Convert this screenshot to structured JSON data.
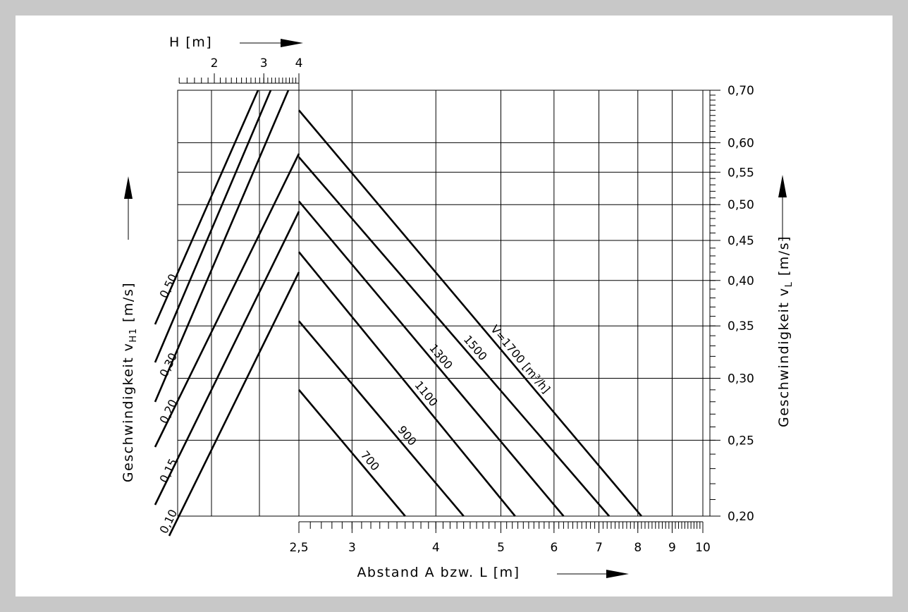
{
  "chart_data": {
    "type": "line",
    "title": "",
    "x_bottom": {
      "label": "Abstand A bzw. L [m]",
      "scale": "log",
      "range": [
        2.5,
        10
      ],
      "tick_labels": [
        "2,5",
        "3",
        "4",
        "5",
        "6",
        "7",
        "8",
        "9",
        "10"
      ],
      "tick_values": [
        2.5,
        3,
        4,
        5,
        6,
        7,
        8,
        9,
        10
      ]
    },
    "x_top": {
      "label": "H [m]",
      "scale": "log",
      "tick_labels": [
        "2",
        "3",
        "4"
      ],
      "tick_values": [
        2,
        3,
        4
      ]
    },
    "y_right": {
      "label": "Geschwindigkeit v_L [m/s]",
      "scale": "log",
      "range": [
        0.2,
        0.7
      ],
      "tick_labels": [
        "0,70",
        "0,60",
        "0,55",
        "0,50",
        "0,45",
        "0,40",
        "0,35",
        "0,30",
        "0,25",
        "0,20"
      ],
      "tick_values": [
        0.7,
        0.6,
        0.55,
        0.5,
        0.45,
        0.4,
        0.35,
        0.3,
        0.25,
        0.2
      ]
    },
    "y_left": {
      "label": "Geschwindigkeit v_H1 [m/s]",
      "curve_labels": [
        "0,10",
        "0,15",
        "0,20",
        "0,30",
        "0,50"
      ]
    },
    "flow_unit_label": "V̇=1700 [m³/h]",
    "series": [
      {
        "name": "700",
        "points": [
          [
            2.5,
            0.29
          ],
          [
            3.6,
            0.2
          ]
        ]
      },
      {
        "name": "900",
        "points": [
          [
            2.5,
            0.355
          ],
          [
            4.4,
            0.2
          ]
        ]
      },
      {
        "name": "1100",
        "points": [
          [
            2.5,
            0.435
          ],
          [
            5.25,
            0.2
          ]
        ]
      },
      {
        "name": "1300",
        "points": [
          [
            2.5,
            0.505
          ],
          [
            6.2,
            0.2
          ]
        ]
      },
      {
        "name": "1500",
        "points": [
          [
            2.5,
            0.575
          ],
          [
            7.25,
            0.2
          ]
        ]
      },
      {
        "name": "1700",
        "points": [
          [
            2.5,
            0.66
          ],
          [
            8.1,
            0.2
          ]
        ]
      }
    ],
    "grid": true
  }
}
